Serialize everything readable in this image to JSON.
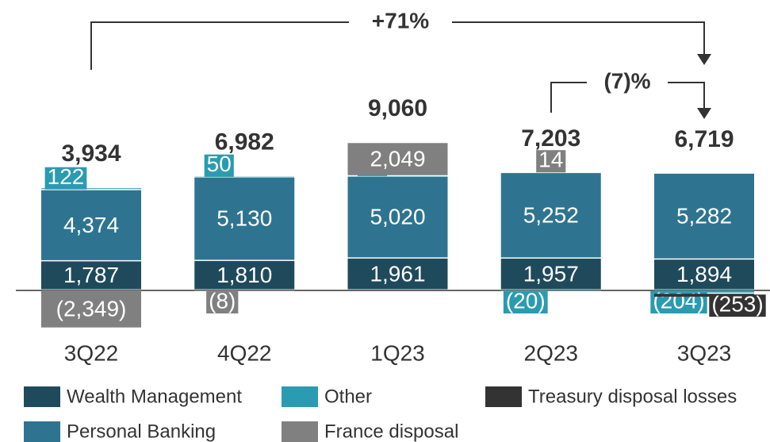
{
  "chart_data": {
    "type": "stacked_bar",
    "categories": [
      "3Q22",
      "4Q22",
      "1Q23",
      "2Q23",
      "3Q23"
    ],
    "totals": [
      3934,
      6982,
      9060,
      7203,
      6719
    ],
    "total_labels": [
      "3,934",
      "6,982",
      "9,060",
      "7,203",
      "6,719"
    ],
    "series": [
      {
        "name": "Wealth Management",
        "color": "#1f4a5c",
        "values": [
          1787,
          1810,
          1961,
          1957,
          1894
        ],
        "value_labels": [
          "1,787",
          "1,810",
          "1,961",
          "1,957",
          "1,894"
        ]
      },
      {
        "name": "Personal Banking",
        "color": "#2e7490",
        "values": [
          4374,
          5130,
          5020,
          5252,
          5282
        ],
        "value_labels": [
          "4,374",
          "5,130",
          "5,020",
          "5,252",
          "5,282"
        ]
      },
      {
        "name": "Other",
        "color": "#2a9bb0",
        "values": [
          122,
          50,
          30,
          -20,
          -204
        ],
        "value_labels": [
          "122",
          "50",
          "30",
          "(20)",
          "(204)"
        ]
      },
      {
        "name": "France disposal",
        "color": "#808080",
        "values": [
          -2349,
          -8,
          2049,
          14,
          null
        ],
        "value_labels": [
          "(2,349)",
          "(8)",
          "2,049",
          "14",
          null
        ]
      },
      {
        "name": "Treasury disposal losses",
        "color": "#333333",
        "values": [
          null,
          null,
          null,
          null,
          -253
        ],
        "value_labels": [
          null,
          null,
          null,
          null,
          "(253)"
        ]
      }
    ],
    "annotations": [
      "+71%",
      "(7)%"
    ]
  }
}
